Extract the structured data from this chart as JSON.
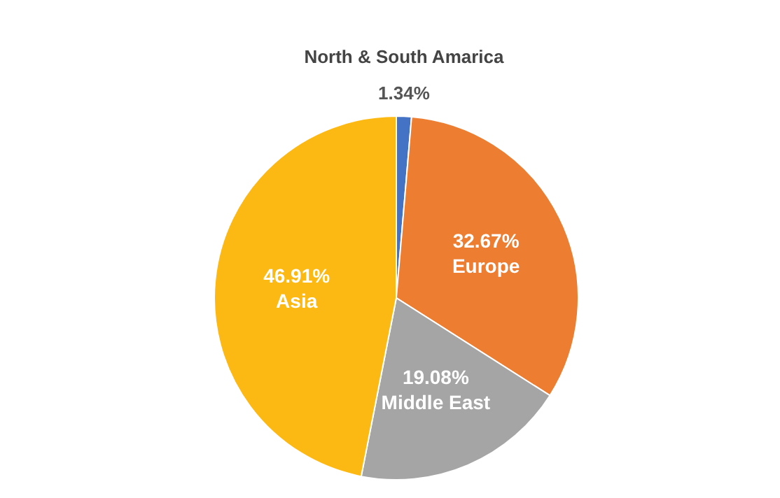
{
  "chart_data": {
    "type": "pie",
    "categories": [
      "North & South Amarica",
      "Europe",
      "Middle East",
      "Asia"
    ],
    "values": [
      1.34,
      32.67,
      19.08,
      46.91
    ],
    "colors": [
      "#4472c4",
      "#ed7d31",
      "#a5a5a5",
      "#fdb913"
    ],
    "value_labels": [
      "1.34%",
      "32.67%",
      "19.08%",
      "46.91%"
    ],
    "legend": false
  }
}
